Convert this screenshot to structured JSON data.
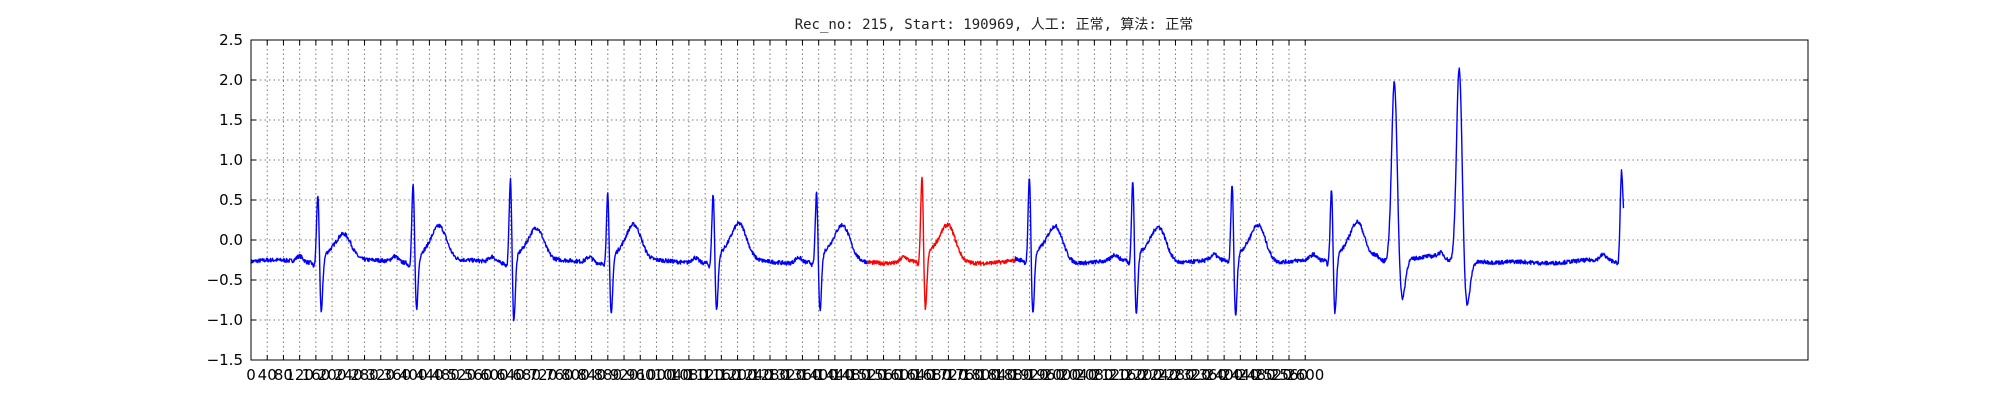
{
  "chart_data": {
    "type": "line",
    "title": "Rec_no: 215, Start: 190969, 人工: 正常, 算法: 正常",
    "xlabel": "",
    "ylabel": "",
    "xlim": [
      0,
      3840
    ],
    "ylim": [
      -1.5,
      2.5
    ],
    "grid": true,
    "x_ticks": [
      0,
      40,
      80,
      120,
      160,
      200,
      240,
      280,
      320,
      360,
      400,
      440,
      480,
      520,
      560,
      600,
      640,
      680,
      720,
      760,
      800,
      840,
      880,
      920,
      960,
      1000,
      1040,
      1080,
      1120,
      1160,
      1200,
      1240,
      1280,
      1320,
      1360,
      1400,
      1440,
      1480,
      1520,
      1560,
      1600,
      1640,
      1680,
      1720,
      1760,
      1800,
      1840,
      1880,
      1920,
      1960,
      2000,
      2040,
      2080,
      2120,
      2160,
      2200,
      2240,
      2280,
      2320,
      2360,
      2400,
      2440,
      2480,
      2520,
      2560,
      2600
    ],
    "y_ticks": [
      -1.5,
      -1.0,
      -0.5,
      0.0,
      0.5,
      1.0,
      1.5,
      2.0,
      2.5
    ],
    "y_tick_labels": [
      "−1.5",
      "−1.0",
      "−0.5",
      "0.0",
      "0.5",
      "1.0",
      "1.5",
      "2.0",
      "2.5"
    ],
    "sample_rate_hz": 250,
    "series": [
      {
        "color": "#0000ff",
        "segment_x_range": [
          0,
          1520
        ],
        "beats": [
          {
            "r_x": 165,
            "r_amp": 0.62,
            "s_amp": -0.9,
            "t_amp": 0.05
          },
          {
            "r_x": 400,
            "r_amp": 0.75,
            "s_amp": -0.88,
            "t_amp": 0.15
          },
          {
            "r_x": 640,
            "r_amp": 0.82,
            "s_amp": -1.02,
            "t_amp": 0.12
          },
          {
            "r_x": 880,
            "r_amp": 0.65,
            "s_amp": -0.95,
            "t_amp": 0.16
          },
          {
            "r_x": 1140,
            "r_amp": 0.62,
            "s_amp": -0.9,
            "t_amp": 0.16
          },
          {
            "r_x": 1395,
            "r_amp": 0.62,
            "s_amp": -0.92,
            "t_amp": 0.14
          }
        ]
      },
      {
        "color": "#ff0000",
        "segment_x_range": [
          1520,
          1885
        ],
        "beats": [
          {
            "r_x": 1655,
            "r_amp": 0.8,
            "s_amp": -0.92,
            "t_amp": 0.15
          }
        ]
      },
      {
        "color": "#0000ff",
        "segment_x_range": [
          1885,
          3385
        ],
        "beats": [
          {
            "r_x": 1920,
            "r_amp": 0.8,
            "s_amp": -0.98,
            "t_amp": 0.15
          },
          {
            "r_x": 2175,
            "r_amp": 0.76,
            "s_amp": -0.98,
            "t_amp": 0.15
          },
          {
            "r_x": 2420,
            "r_amp": 0.72,
            "s_amp": -1.0,
            "t_amp": 0.18
          },
          {
            "r_x": 2665,
            "r_amp": 0.66,
            "s_amp": -0.94,
            "t_amp": 0.22
          },
          {
            "r_x": 2820,
            "r_amp": 2.0,
            "s_amp": -0.8,
            "t_amp": -0.2
          },
          {
            "r_x": 2980,
            "r_amp": 2.2,
            "s_amp": -0.85,
            "t_amp": -0.3
          },
          {
            "r_x": 3380,
            "r_amp": 0.82,
            "s_amp": 0.25,
            "t_amp": 0.0
          }
        ]
      }
    ]
  }
}
